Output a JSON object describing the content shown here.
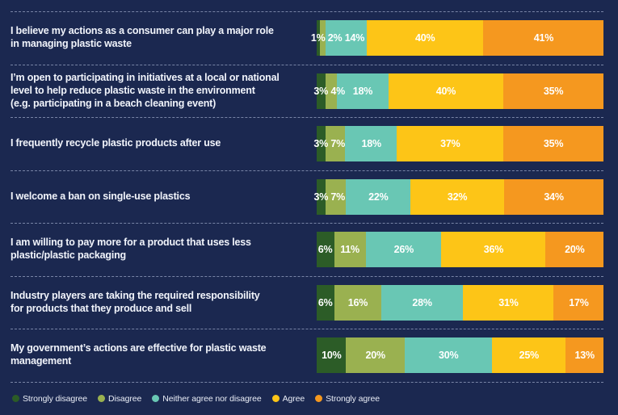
{
  "page": {
    "background_color": "#1b2850",
    "separator_color": "#aab6d4",
    "text_color": "#f1f4fb"
  },
  "chart_data": {
    "type": "bar",
    "stacked": true,
    "orientation": "horizontal",
    "unit": "%",
    "value_labels": true,
    "legend_position": "bottom",
    "categories": [
      "I believe my actions as a consumer can play a major role\nin managing plastic waste",
      "I’m open to participating in initiatives at a local or national\nlevel to help reduce plastic waste in the environment\n(e.g. participating in a beach cleaning event)",
      "I frequently recycle plastic products after use",
      "I welcome a ban on single-use plastics",
      "I am willing to pay more for a product that uses less\nplastic/plastic packaging",
      "Industry players are taking the required responsibility\nfor products that they produce and sell",
      "My government’s actions are effective for plastic waste\nmanagement"
    ],
    "series": [
      {
        "name": "Strongly disagree",
        "color": "#2c5c27",
        "values": [
          1,
          3,
          3,
          3,
          6,
          6,
          10
        ]
      },
      {
        "name": "Disagree",
        "color": "#9ab150",
        "values": [
          2,
          4,
          7,
          7,
          11,
          16,
          20
        ]
      },
      {
        "name": "Neither agree nor disagree",
        "color": "#69c7b4",
        "values": [
          14,
          18,
          18,
          22,
          26,
          28,
          30
        ]
      },
      {
        "name": "Agree",
        "color": "#fdc517",
        "values": [
          40,
          40,
          37,
          32,
          36,
          31,
          25
        ]
      },
      {
        "name": "Strongly agree",
        "color": "#f5981f",
        "values": [
          41,
          35,
          35,
          34,
          20,
          17,
          13
        ]
      }
    ]
  }
}
